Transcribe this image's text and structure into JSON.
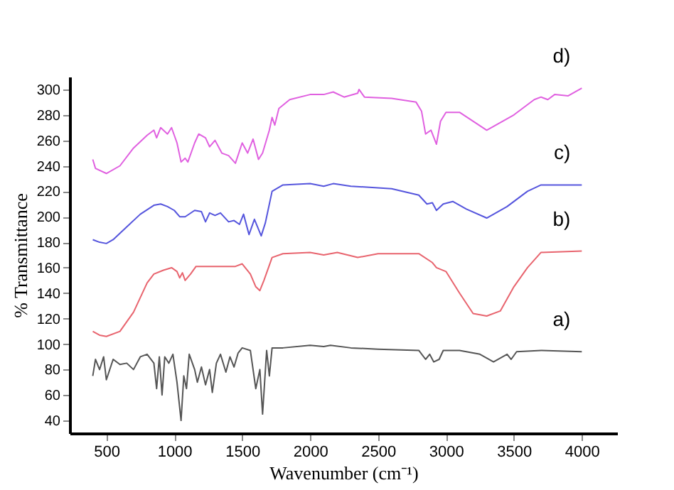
{
  "chart_data": {
    "type": "line",
    "xlabel": "Wavenumber (cm⁻¹)",
    "ylabel": "% Transmittance",
    "xlim": [
      230,
      4260
    ],
    "ylim": [
      30,
      310
    ],
    "xticks": [
      500,
      1000,
      1500,
      2000,
      2500,
      3000,
      3500,
      4000
    ],
    "yticks": [
      40,
      60,
      80,
      100,
      120,
      140,
      160,
      180,
      200,
      220,
      240,
      260,
      280,
      300
    ],
    "grid": false,
    "legend": false,
    "marker": "none",
    "line_style": "solid",
    "series": [
      {
        "name": "a)",
        "color": "#555555",
        "x": [
          400,
          420,
          450,
          480,
          500,
          550,
          600,
          650,
          700,
          750,
          800,
          850,
          870,
          890,
          910,
          930,
          960,
          990,
          1020,
          1050,
          1070,
          1090,
          1110,
          1150,
          1170,
          1200,
          1230,
          1260,
          1280,
          1310,
          1340,
          1380,
          1410,
          1440,
          1470,
          1500,
          1560,
          1600,
          1630,
          1650,
          1680,
          1700,
          1720,
          1800,
          2000,
          2100,
          2150,
          2300,
          2500,
          2800,
          2850,
          2880,
          2910,
          2950,
          2980,
          3100,
          3250,
          3350,
          3450,
          3480,
          3520,
          3700,
          4000
        ],
        "values": [
          75,
          88,
          80,
          90,
          72,
          88,
          84,
          85,
          80,
          90,
          92,
          85,
          65,
          90,
          60,
          90,
          85,
          92,
          70,
          40,
          75,
          65,
          92,
          80,
          70,
          82,
          68,
          80,
          62,
          85,
          92,
          78,
          90,
          82,
          93,
          97,
          95,
          65,
          80,
          45,
          95,
          75,
          97,
          97,
          99,
          98,
          99,
          97,
          96,
          95,
          88,
          92,
          86,
          88,
          95,
          95,
          92,
          86,
          92,
          88,
          94,
          95,
          94
        ]
      },
      {
        "name": "b)",
        "color": "#e8646e",
        "x": [
          400,
          450,
          500,
          600,
          700,
          800,
          850,
          920,
          980,
          1020,
          1040,
          1060,
          1080,
          1120,
          1160,
          1300,
          1450,
          1500,
          1560,
          1600,
          1630,
          1660,
          1720,
          1800,
          2000,
          2100,
          2200,
          2350,
          2500,
          2800,
          2900,
          2930,
          3000,
          3100,
          3200,
          3300,
          3400,
          3500,
          3600,
          3700,
          4000
        ],
        "values": [
          110,
          107,
          106,
          110,
          125,
          148,
          155,
          158,
          160,
          157,
          152,
          156,
          150,
          155,
          161,
          161,
          161,
          163,
          155,
          145,
          142,
          150,
          168,
          171,
          172,
          170,
          172,
          168,
          171,
          171,
          164,
          160,
          157,
          140,
          124,
          122,
          126,
          145,
          160,
          172,
          173
        ]
      },
      {
        "name": "c)",
        "color": "#5555dd",
        "x": [
          400,
          450,
          500,
          550,
          650,
          750,
          850,
          900,
          950,
          1000,
          1040,
          1080,
          1150,
          1200,
          1230,
          1260,
          1300,
          1340,
          1400,
          1440,
          1480,
          1510,
          1550,
          1590,
          1640,
          1670,
          1720,
          1800,
          2000,
          2100,
          2170,
          2300,
          2600,
          2800,
          2860,
          2900,
          2930,
          2980,
          3050,
          3150,
          3300,
          3450,
          3600,
          3700,
          4000
        ],
        "values": [
          182,
          180,
          179,
          182,
          192,
          202,
          209,
          210,
          208,
          205,
          200,
          200,
          205,
          204,
          196,
          203,
          201,
          203,
          196,
          197,
          194,
          202,
          186,
          198,
          185,
          195,
          220,
          225,
          226,
          224,
          226,
          224,
          222,
          217,
          210,
          211,
          205,
          210,
          212,
          206,
          199,
          208,
          220,
          225,
          225
        ]
      },
      {
        "name": "d)",
        "color": "#e060e0",
        "x": [
          400,
          420,
          500,
          600,
          700,
          800,
          850,
          870,
          900,
          950,
          980,
          1020,
          1050,
          1080,
          1100,
          1150,
          1180,
          1230,
          1260,
          1300,
          1350,
          1400,
          1450,
          1500,
          1540,
          1580,
          1620,
          1650,
          1700,
          1720,
          1740,
          1770,
          1850,
          2000,
          2100,
          2170,
          2250,
          2350,
          2360,
          2400,
          2600,
          2780,
          2820,
          2850,
          2890,
          2930,
          2960,
          3000,
          3100,
          3300,
          3500,
          3650,
          3700,
          3750,
          3800,
          3900,
          4000
        ],
        "values": [
          245,
          238,
          234,
          240,
          254,
          264,
          268,
          262,
          270,
          265,
          270,
          258,
          243,
          246,
          243,
          258,
          265,
          262,
          255,
          260,
          250,
          248,
          242,
          258,
          250,
          261,
          245,
          250,
          268,
          278,
          272,
          285,
          292,
          296,
          296,
          298,
          294,
          297,
          300,
          294,
          293,
          290,
          283,
          265,
          268,
          257,
          275,
          282,
          282,
          268,
          280,
          292,
          294,
          292,
          296,
          295,
          301
        ]
      }
    ]
  }
}
